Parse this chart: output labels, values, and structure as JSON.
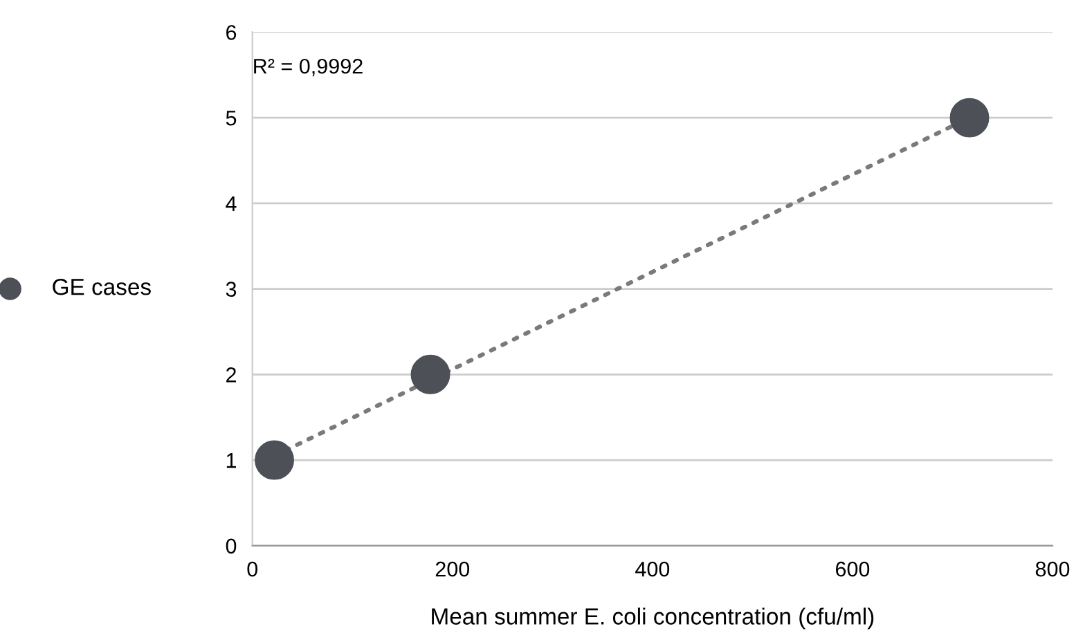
{
  "chart_data": {
    "type": "scatter",
    "xlabel": "Mean summer E. coli concentration (cfu/ml)",
    "x": [
      22,
      178,
      717
    ],
    "series": [
      {
        "name": "GE cases",
        "color": "#4d5157",
        "values": [
          1,
          2,
          5
        ],
        "marker": "circle"
      },
      {
        "type": "line",
        "color": "#7a7a7a",
        "x": [
          22,
          717
        ],
        "values": [
          1.05,
          5.0
        ],
        "line_style": "dotted"
      }
    ],
    "annotations": [
      "R² = 0,9992"
    ],
    "xlim": [
      0,
      800
    ],
    "xticks": [
      0,
      200,
      400,
      600,
      800
    ],
    "ylim": [
      0,
      6
    ],
    "yticks": [
      0,
      1,
      2,
      3,
      4,
      5,
      6
    ],
    "grid": "y",
    "legend": "left"
  }
}
